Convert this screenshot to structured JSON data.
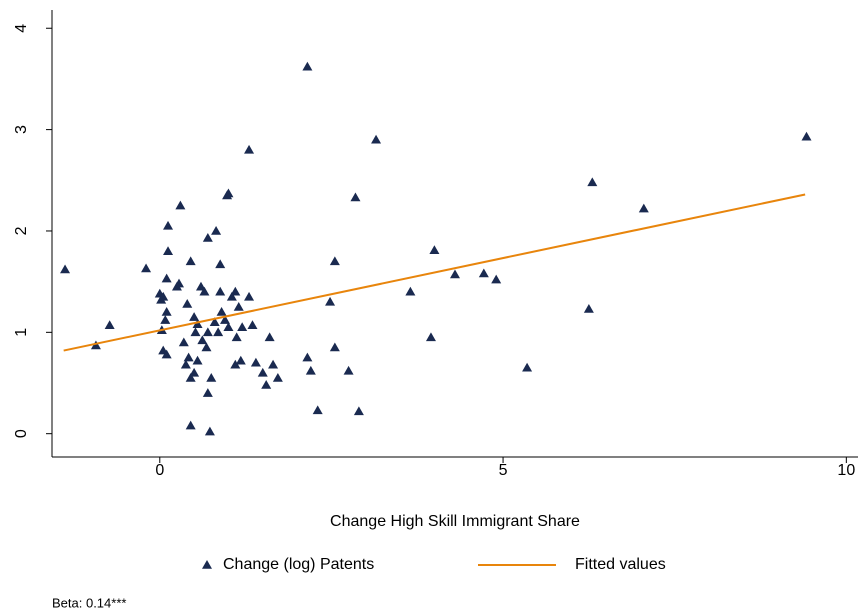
{
  "chart_data": {
    "type": "scatter",
    "xlabel": "Change High Skill Immigrant Share",
    "note": "Beta: 0.14***",
    "xlim": [
      -1.57,
      10.17
    ],
    "ylim": [
      -0.23,
      4.18
    ],
    "xticks": [
      0,
      5,
      10
    ],
    "yticks": [
      0,
      1,
      2,
      3,
      4
    ],
    "grid": false,
    "legend": "bottom",
    "series": [
      {
        "name": "Change (log) Patents",
        "type": "scatter",
        "color": "#1a2a50",
        "x": [
          -1.38,
          -0.93,
          -0.73,
          -0.2,
          0.0,
          0.02,
          0.05,
          0.03,
          0.08,
          0.1,
          0.05,
          0.1,
          0.1,
          0.12,
          0.12,
          0.25,
          0.28,
          0.3,
          0.35,
          0.38,
          0.4,
          0.42,
          0.45,
          0.45,
          0.45,
          0.5,
          0.5,
          0.52,
          0.55,
          0.55,
          0.6,
          0.62,
          0.65,
          0.68,
          0.7,
          0.7,
          0.7,
          0.73,
          0.75,
          0.8,
          0.82,
          0.85,
          0.88,
          0.88,
          0.9,
          0.95,
          0.98,
          1.0,
          1.0,
          1.05,
          1.1,
          1.1,
          1.12,
          1.15,
          1.18,
          1.2,
          1.3,
          1.3,
          1.35,
          1.4,
          1.5,
          1.55,
          1.6,
          1.65,
          1.72,
          2.15,
          2.15,
          2.2,
          2.3,
          2.48,
          2.55,
          2.55,
          2.75,
          2.85,
          2.9,
          3.15,
          3.65,
          3.95,
          4.0,
          4.3,
          4.72,
          4.9,
          5.35,
          6.25,
          6.3,
          7.05,
          9.42
        ],
        "values": [
          1.62,
          0.87,
          1.07,
          1.63,
          1.38,
          1.32,
          1.35,
          1.02,
          1.12,
          1.2,
          0.82,
          0.78,
          1.53,
          1.8,
          2.05,
          1.45,
          1.48,
          2.25,
          0.9,
          0.68,
          1.28,
          0.75,
          1.7,
          0.55,
          0.08,
          0.6,
          1.15,
          1.0,
          1.08,
          0.72,
          1.45,
          0.92,
          1.4,
          0.85,
          1.93,
          1.0,
          0.4,
          0.02,
          0.55,
          1.1,
          2.0,
          1.0,
          1.4,
          1.67,
          1.2,
          1.12,
          2.35,
          2.37,
          1.05,
          1.35,
          1.4,
          0.68,
          0.95,
          1.25,
          0.72,
          1.05,
          1.35,
          2.8,
          1.07,
          0.7,
          0.6,
          0.48,
          0.95,
          0.68,
          0.55,
          0.75,
          3.62,
          0.62,
          0.23,
          1.3,
          1.7,
          0.85,
          0.62,
          2.33,
          0.22,
          2.9,
          1.4,
          0.95,
          1.81,
          1.57,
          1.58,
          1.52,
          0.65,
          1.23,
          2.48,
          2.22,
          2.93
        ]
      },
      {
        "name": "Fitted values",
        "type": "line",
        "color": "#e8850c",
        "x": [
          -1.4,
          9.4
        ],
        "values": [
          0.82,
          2.36
        ]
      }
    ]
  }
}
